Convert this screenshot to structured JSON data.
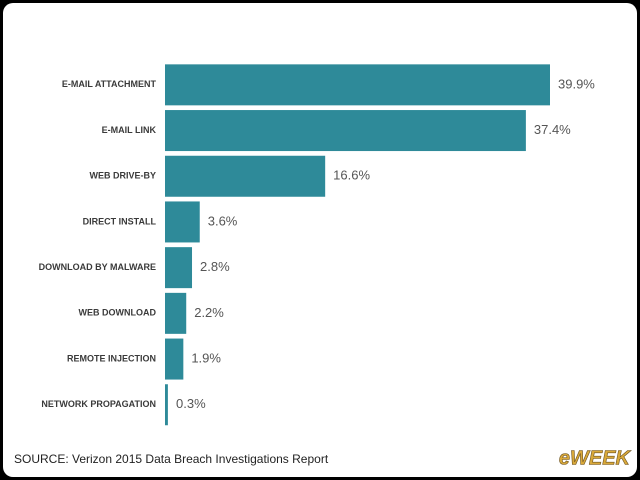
{
  "chart_data": {
    "type": "bar",
    "orientation": "horizontal",
    "categories": [
      "E-MAIL ATTACHMENT",
      "E-MAIL LINK",
      "WEB DRIVE-BY",
      "DIRECT INSTALL",
      "DOWNLOAD BY MALWARE",
      "WEB DOWNLOAD",
      "REMOTE INJECTION",
      "NETWORK PROPAGATION"
    ],
    "values": [
      39.9,
      37.4,
      16.6,
      3.6,
      2.8,
      2.2,
      1.9,
      0.3
    ],
    "value_labels": [
      "39.9%",
      "37.4%",
      "16.6%",
      "3.6%",
      "2.8%",
      "2.2%",
      "1.9%",
      "0.3%"
    ],
    "color": "#2e8a99",
    "source": "SOURCE: Verizon 2015 Data Breach Investigations Report",
    "logo": "eWEEK"
  }
}
